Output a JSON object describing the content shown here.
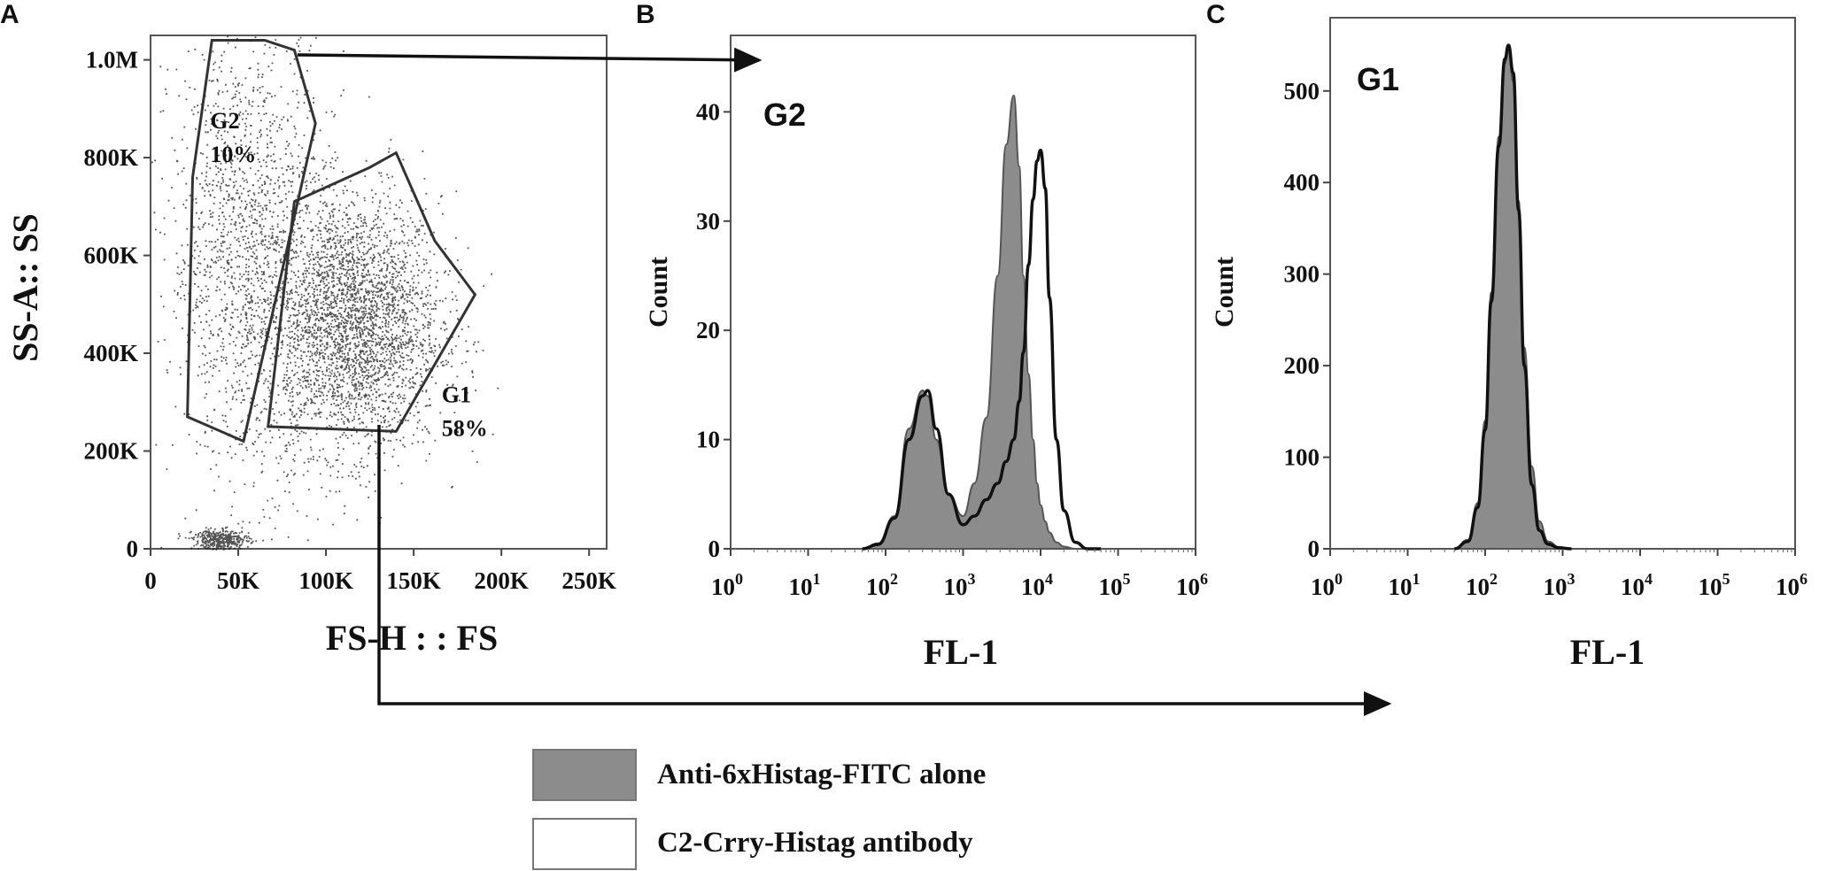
{
  "panel_labels": [
    "A",
    "B",
    "C"
  ],
  "chart_data": [
    {
      "type": "scatter",
      "panel": "A",
      "xlabel": "FS-H : : FS",
      "ylabel": "SS-A:: SS",
      "xlim": [
        0,
        260000
      ],
      "ylim": [
        0,
        1050000
      ],
      "x_ticks": [
        "0",
        "50K",
        "100K",
        "150K",
        "200K",
        "250K"
      ],
      "x_tick_values": [
        0,
        50000,
        100000,
        150000,
        200000,
        250000
      ],
      "y_ticks": [
        "0",
        "200K",
        "400K",
        "600K",
        "800K",
        "1.0M"
      ],
      "y_tick_values": [
        0,
        200000,
        400000,
        600000,
        800000,
        1000000
      ],
      "clusters": [
        {
          "gate": "G1",
          "center": [
            115000,
            460000
          ],
          "spread": [
            25000,
            130000
          ],
          "weight": 0.62
        },
        {
          "gate": "G2",
          "center": [
            55000,
            620000
          ],
          "spread": [
            22000,
            230000
          ],
          "weight": 0.3
        },
        {
          "gate": "debris",
          "center": [
            40000,
            20000
          ],
          "spread": [
            8000,
            10000
          ],
          "weight": 0.08
        }
      ],
      "gates": [
        {
          "name": "G2",
          "percent": "10%",
          "polygon": [
            [
              35000,
              1040000
            ],
            [
              65000,
              1040000
            ],
            [
              82000,
              1020000
            ],
            [
              94000,
              870000
            ],
            [
              53000,
              220000
            ],
            [
              21000,
              270000
            ],
            [
              24000,
              760000
            ]
          ]
        },
        {
          "name": "G1",
          "percent": "58%",
          "polygon": [
            [
              82000,
              710000
            ],
            [
              125000,
              780000
            ],
            [
              140000,
              810000
            ],
            [
              162000,
              630000
            ],
            [
              185000,
              520000
            ],
            [
              140000,
              240000
            ],
            [
              67000,
              250000
            ]
          ]
        }
      ],
      "gate_labels": [
        {
          "lines": [
            "G2",
            "10%"
          ],
          "at": [
            34000,
            860000
          ]
        },
        {
          "lines": [
            "G1",
            "58%"
          ],
          "at": [
            166000,
            300000
          ]
        }
      ]
    },
    {
      "type": "area",
      "panel": "B",
      "gate_label": "G2",
      "xlabel": "FL-1",
      "ylabel": "Count",
      "x_scale": "log",
      "xlim": [
        1,
        1000000
      ],
      "ylim": [
        0,
        47
      ],
      "x_tick_exponents": [
        "0",
        "1",
        "2",
        "3",
        "4",
        "5",
        "6"
      ],
      "y_ticks": [
        "0",
        "10",
        "20",
        "30",
        "40"
      ],
      "y_tick_values": [
        0,
        10,
        20,
        30,
        40
      ],
      "x": [
        50,
        80,
        130,
        200,
        300,
        350,
        450,
        650,
        1000,
        1400,
        2000,
        2800,
        3600,
        4500,
        5300,
        6000,
        7000,
        8000,
        9000,
        10000,
        11500,
        13000,
        16000,
        20000,
        28000,
        40000,
        60000
      ],
      "series": [
        {
          "name": "Anti-6xHistag-FITC  alone",
          "fill": true,
          "values": [
            0,
            0.5,
            3,
            11,
            14.5,
            14,
            10,
            5,
            3,
            6,
            12,
            25,
            37,
            41.5,
            35,
            25,
            16,
            10,
            6,
            4,
            2.5,
            1.5,
            0.6,
            0.2,
            0,
            0,
            0
          ]
        },
        {
          "name": "C2-Crry-Histag  antibody",
          "fill": false,
          "values": [
            0,
            0.4,
            2.8,
            10,
            14,
            14.5,
            11,
            5,
            2.2,
            3,
            4.5,
            6,
            8,
            10,
            13.5,
            18,
            26,
            32,
            35.5,
            36.5,
            33,
            23,
            10,
            3.5,
            0.6,
            0,
            0
          ]
        }
      ]
    },
    {
      "type": "area",
      "panel": "C",
      "gate_label": "G1",
      "xlabel": "FL-1",
      "ylabel": "Count",
      "x_scale": "log",
      "xlim": [
        1,
        1000000
      ],
      "ylim": [
        0,
        580
      ],
      "x_tick_exponents": [
        "0",
        "1",
        "2",
        "3",
        "4",
        "5",
        "6"
      ],
      "y_ticks": [
        "0",
        "100",
        "200",
        "300",
        "400",
        "500"
      ],
      "y_tick_values": [
        0,
        100,
        200,
        300,
        400,
        500
      ],
      "x": [
        40,
        60,
        80,
        100,
        120,
        150,
        180,
        200,
        230,
        270,
        320,
        400,
        500,
        650,
        900,
        1300
      ],
      "series": [
        {
          "name": "Anti-6xHistag-FITC  alone",
          "fill": true,
          "values": [
            0,
            10,
            50,
            140,
            280,
            450,
            530,
            545,
            510,
            380,
            220,
            90,
            30,
            8,
            2,
            0
          ]
        },
        {
          "name": "C2-Crry-Histag  antibody",
          "fill": false,
          "values": [
            0,
            8,
            45,
            130,
            270,
            440,
            535,
            550,
            520,
            370,
            200,
            70,
            20,
            5,
            1,
            0
          ]
        }
      ]
    }
  ],
  "legend": {
    "items": [
      {
        "label": "Anti-6xHistag-FITC  alone",
        "swatch": "#8c8c8c"
      },
      {
        "label": "C2-Crry-Histag  antibody",
        "swatch": "#ffffff"
      }
    ]
  },
  "colors": {
    "fill_series": "#8c8c8c",
    "line": "#111111",
    "frame": "#555555",
    "dots": "#1a1a1a"
  }
}
